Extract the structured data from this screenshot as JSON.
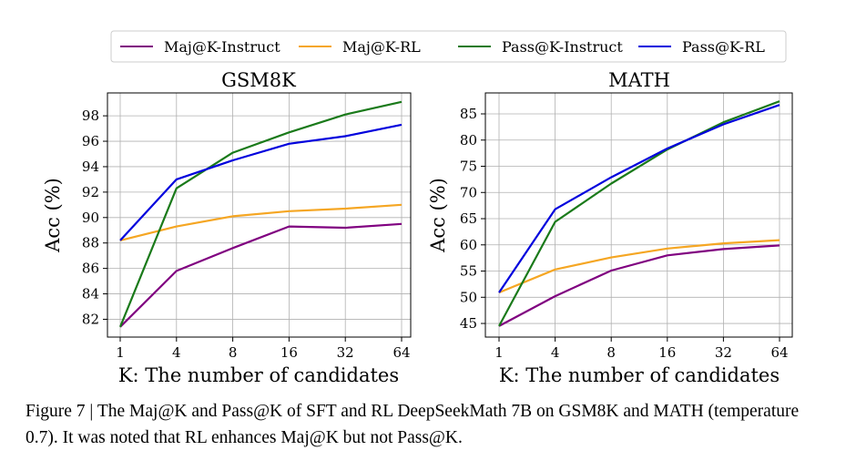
{
  "legend": [
    {
      "name": "Maj@K-Instruct",
      "color": "#800080"
    },
    {
      "name": "Maj@K-RL",
      "color": "#f5a623"
    },
    {
      "name": "Pass@K-Instruct",
      "color": "#1a7a1a"
    },
    {
      "name": "Pass@K-RL",
      "color": "#0000dd"
    }
  ],
  "caption": "Figure 7 | The Maj@K and Pass@K of SFT and RL DeepSeekMath 7B on GSM8K and MATH (temperature 0.7). It was noted that RL enhances Maj@K but not Pass@K.",
  "chart_data": [
    {
      "type": "line",
      "title": "GSM8K",
      "xlabel": "K: The number of candidates",
      "ylabel": "Acc (%)",
      "categories": [
        "1",
        "4",
        "8",
        "16",
        "32",
        "64"
      ],
      "yticks": [
        82,
        84,
        86,
        88,
        90,
        92,
        94,
        96,
        98
      ],
      "ylim": [
        80.6,
        99.8
      ],
      "grid": true,
      "series": [
        {
          "name": "Maj@K-Instruct",
          "color": "#800080",
          "values": [
            81.4,
            85.8,
            87.6,
            89.3,
            89.2,
            89.5
          ]
        },
        {
          "name": "Maj@K-RL",
          "color": "#f5a623",
          "values": [
            88.2,
            89.3,
            90.1,
            90.5,
            90.7,
            91.0
          ]
        },
        {
          "name": "Pass@K-Instruct",
          "color": "#1a7a1a",
          "values": [
            81.4,
            92.3,
            95.1,
            96.7,
            98.1,
            99.1
          ]
        },
        {
          "name": "Pass@K-RL",
          "color": "#0000dd",
          "values": [
            88.2,
            93.0,
            94.5,
            95.8,
            96.4,
            97.3
          ]
        }
      ]
    },
    {
      "type": "line",
      "title": "MATH",
      "xlabel": "K: The number of candidates",
      "ylabel": "Acc (%)",
      "categories": [
        "1",
        "4",
        "8",
        "16",
        "32",
        "64"
      ],
      "yticks": [
        45,
        50,
        55,
        60,
        65,
        70,
        75,
        80,
        85
      ],
      "ylim": [
        42.4,
        89.0
      ],
      "grid": true,
      "series": [
        {
          "name": "Maj@K-Instruct",
          "color": "#800080",
          "values": [
            44.5,
            50.2,
            55.1,
            58.0,
            59.2,
            59.9
          ]
        },
        {
          "name": "Maj@K-RL",
          "color": "#f5a623",
          "values": [
            50.9,
            55.3,
            57.6,
            59.3,
            60.3,
            60.9
          ]
        },
        {
          "name": "Pass@K-Instruct",
          "color": "#1a7a1a",
          "values": [
            44.5,
            64.4,
            71.7,
            78.2,
            83.4,
            87.4
          ]
        },
        {
          "name": "Pass@K-RL",
          "color": "#0000dd",
          "values": [
            50.9,
            66.8,
            72.9,
            78.4,
            83.0,
            86.7
          ]
        }
      ]
    }
  ]
}
